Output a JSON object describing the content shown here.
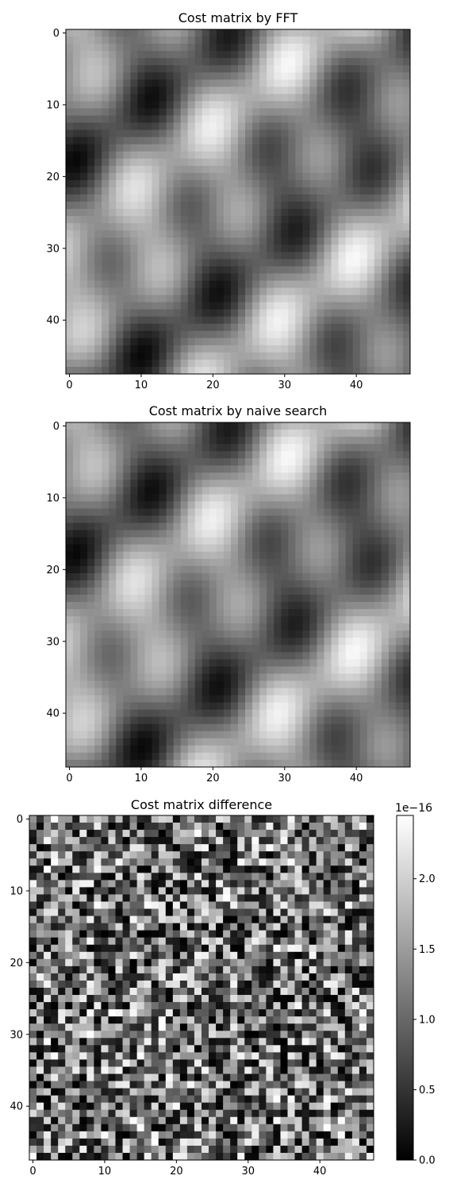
{
  "chart_data": [
    {
      "type": "heatmap",
      "title": "Cost matrix by FFT",
      "xlabel": "",
      "ylabel": "",
      "colormap": "gray",
      "grid_size": [
        48,
        48
      ],
      "xlim": [
        -0.5,
        47.5
      ],
      "ylim": [
        47.5,
        -0.5
      ],
      "xticks": [
        "0",
        "10",
        "20",
        "30",
        "40"
      ],
      "yticks": [
        "0",
        "10",
        "20",
        "30",
        "40"
      ],
      "description_of_values": "smooth periodic pattern of bright and dark blobs"
    },
    {
      "type": "heatmap",
      "title": "Cost matrix by naive search",
      "xlabel": "",
      "ylabel": "",
      "colormap": "gray",
      "grid_size": [
        48,
        48
      ],
      "xlim": [
        -0.5,
        47.5
      ],
      "ylim": [
        47.5,
        -0.5
      ],
      "xticks": [
        "0",
        "10",
        "20",
        "30",
        "40"
      ],
      "yticks": [
        "0",
        "10",
        "20",
        "30",
        "40"
      ]
    },
    {
      "type": "heatmap",
      "title": "Cost matrix difference",
      "xlabel": "",
      "ylabel": "",
      "colormap": "gray",
      "grid_size": [
        48,
        48
      ],
      "xlim": [
        -0.5,
        47.5
      ],
      "ylim": [
        47.5,
        -0.5
      ],
      "xticks": [
        "0",
        "10",
        "20",
        "30",
        "40"
      ],
      "yticks": [
        "0",
        "10",
        "20",
        "30",
        "40"
      ],
      "colorbar": {
        "ticks": [
          "0.0",
          "0.5",
          "1.0",
          "1.5",
          "2.0"
        ],
        "tick_values": [
          0.0,
          0.5,
          1.0,
          1.5,
          2.0
        ],
        "range": [
          0.0,
          2.45
        ],
        "offset_label": "1e−16"
      }
    }
  ]
}
